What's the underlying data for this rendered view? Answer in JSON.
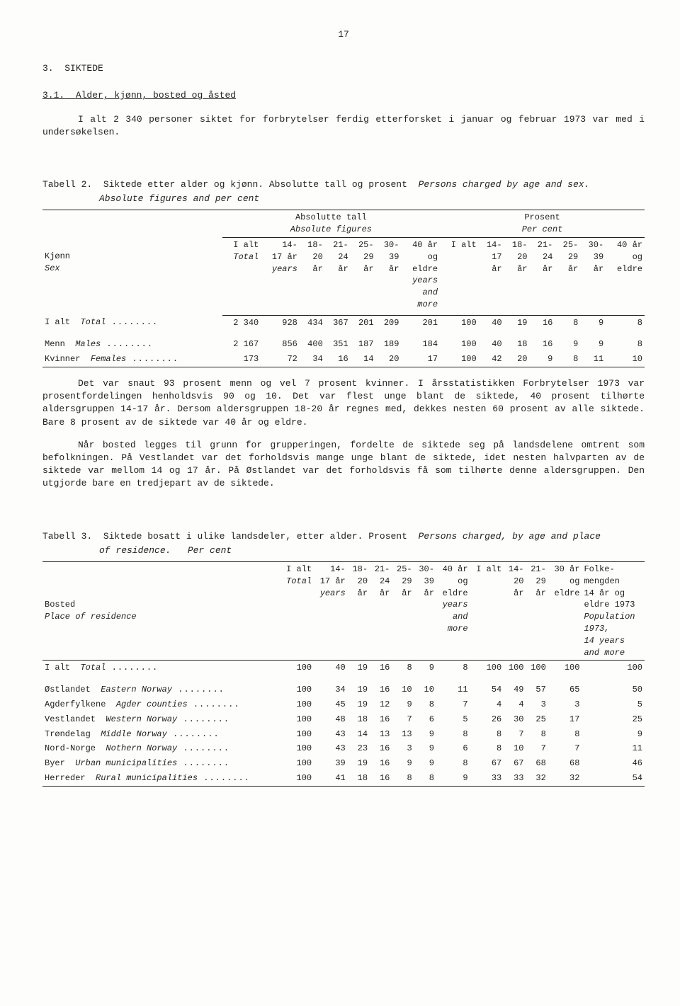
{
  "page_number": "17",
  "section_number": "3.",
  "section_title": "SIKTEDE",
  "subsection_number": "3.1.",
  "subsection_title": "Alder, kjønn, bosted og åsted",
  "para1": "I alt 2 340 personer siktet for forbrytelser ferdig etterforsket i januar og februar 1973 var med i undersøkelsen.",
  "table2": {
    "label": "Tabell 2.",
    "title_no": "Siktede etter alder og kjønn.  Absolutte tall og prosent",
    "title_en": "Persons charged by age and sex.",
    "sub_en": "Absolute figures and per cent",
    "span1_no": "Absolutte tall",
    "span1_en": "Absolute figures",
    "span2_no": "Prosent",
    "span2_en": "Per cent",
    "rowhead_no": "Kjønn",
    "rowhead_en": "Sex",
    "cols_abs": [
      "I alt",
      "14-\n17 år",
      "18-\n20\når",
      "21-\n24\når",
      "25-\n29\når",
      "30-\n39\når",
      "40 år\nog\neldre"
    ],
    "cols_abs_it": [
      "Total",
      "years",
      "",
      "",
      "",
      "",
      "years\nand\nmore"
    ],
    "cols_pct": [
      "I alt",
      "14-\n17\når",
      "18-\n20\når",
      "21-\n24\når",
      "25-\n29\når",
      "30-\n39\når",
      "40 år\nog\neldre"
    ],
    "rows": [
      {
        "label_no": "I alt",
        "label_en": "Total",
        "abs": [
          "2 340",
          "928",
          "434",
          "367",
          "201",
          "209",
          "201"
        ],
        "pct": [
          "100",
          "40",
          "19",
          "16",
          "8",
          "9",
          "8"
        ]
      },
      {
        "label_no": "Menn",
        "label_en": "Males",
        "abs": [
          "2 167",
          "856",
          "400",
          "351",
          "187",
          "189",
          "184"
        ],
        "pct": [
          "100",
          "40",
          "18",
          "16",
          "9",
          "9",
          "8"
        ]
      },
      {
        "label_no": "Kvinner",
        "label_en": "Females",
        "abs": [
          "173",
          "72",
          "34",
          "16",
          "14",
          "20",
          "17"
        ],
        "pct": [
          "100",
          "42",
          "20",
          "9",
          "8",
          "11",
          "10"
        ]
      }
    ]
  },
  "para2": "Det var snaut 93 prosent menn og vel 7 prosent kvinner.  I årsstatistikken Forbrytelser 1973 var prosentfordelingen henholdsvis 90 og 10.  Det var flest unge blant de siktede, 40 prosent tilhørte aldersgruppen 14-17 år.  Dersom aldersgruppen 18-20 år regnes med, dekkes nesten 60 prosent av alle siktede.  Bare 8 prosent av de siktede var 40 år og eldre.",
  "para3": "Når bosted legges til grunn for grupperingen, fordelte de siktede seg på landsdelene omtrent som befolkningen.  På Vestlandet var det forholdsvis mange unge blant de siktede, idet nesten halvparten av de siktede var mellom 14 og 17 år.  På Østlandet var det forholdsvis få som tilhørte denne aldersgruppen.  Den utgjorde bare en tredjepart av de siktede.",
  "table3": {
    "label": "Tabell 3.",
    "title_no": "Siktede bosatt i ulike landsdeler, etter alder.  Prosent",
    "title_en": "Persons charged, by age and place",
    "sub_en_a": "of residence.",
    "sub_en_b": "Per cent",
    "rowhead_no": "Bosted",
    "rowhead_en": "Place of residence",
    "cols_a": [
      "I alt",
      "14-\n17 år",
      "18-\n20\når",
      "21-\n24\når",
      "25-\n29\når",
      "30-\n39\når",
      "40 år\nog\neldre"
    ],
    "cols_a_it": [
      "Total",
      "years",
      "",
      "",
      "",
      "",
      "years\nand\nmore"
    ],
    "cols_b": [
      "I alt",
      "14-\n20\når",
      "21-\n29\når",
      "30 år\nog\neldre"
    ],
    "col_pop_no": "Folke-\nmengden\n14 år og\neldre 1973",
    "col_pop_en": "Population\n1973,\n14 years\nand more",
    "rows": [
      {
        "label_no": "I alt",
        "label_en": "Total",
        "a": [
          "100",
          "40",
          "19",
          "16",
          "8",
          "9",
          "8"
        ],
        "b": [
          "100",
          "100",
          "100",
          "100"
        ],
        "pop": "100"
      },
      {
        "label_no": "Østlandet",
        "label_en": "Eastern Norway",
        "a": [
          "100",
          "34",
          "19",
          "16",
          "10",
          "10",
          "11"
        ],
        "b": [
          "54",
          "49",
          "57",
          "65"
        ],
        "pop": "50"
      },
      {
        "label_no": "Agderfylkene",
        "label_en": "Agder counties",
        "a": [
          "100",
          "45",
          "19",
          "12",
          "9",
          "8",
          "7"
        ],
        "b": [
          "4",
          "4",
          "3",
          "3"
        ],
        "pop": "5"
      },
      {
        "label_no": "Vestlandet",
        "label_en": "Western Norway",
        "a": [
          "100",
          "48",
          "18",
          "16",
          "7",
          "6",
          "5"
        ],
        "b": [
          "26",
          "30",
          "25",
          "17"
        ],
        "pop": "25"
      },
      {
        "label_no": "Trøndelag",
        "label_en": "Middle Norway",
        "a": [
          "100",
          "43",
          "14",
          "13",
          "13",
          "9",
          "8"
        ],
        "b": [
          "8",
          "7",
          "8",
          "8"
        ],
        "pop": "9"
      },
      {
        "label_no": "Nord-Norge",
        "label_en": "Nothern Norway",
        "a": [
          "100",
          "43",
          "23",
          "16",
          "3",
          "9",
          "6"
        ],
        "b": [
          "8",
          "10",
          "7",
          "7"
        ],
        "pop": "11"
      },
      {
        "label_no": "Byer",
        "label_en": "Urban municipalities",
        "a": [
          "100",
          "39",
          "19",
          "16",
          "9",
          "9",
          "8"
        ],
        "b": [
          "67",
          "67",
          "68",
          "68"
        ],
        "pop": "46"
      },
      {
        "label_no": "Herreder",
        "label_en": "Rural municipalities",
        "a": [
          "100",
          "41",
          "18",
          "16",
          "8",
          "8",
          "9"
        ],
        "b": [
          "33",
          "33",
          "32",
          "32"
        ],
        "pop": "54"
      }
    ]
  }
}
